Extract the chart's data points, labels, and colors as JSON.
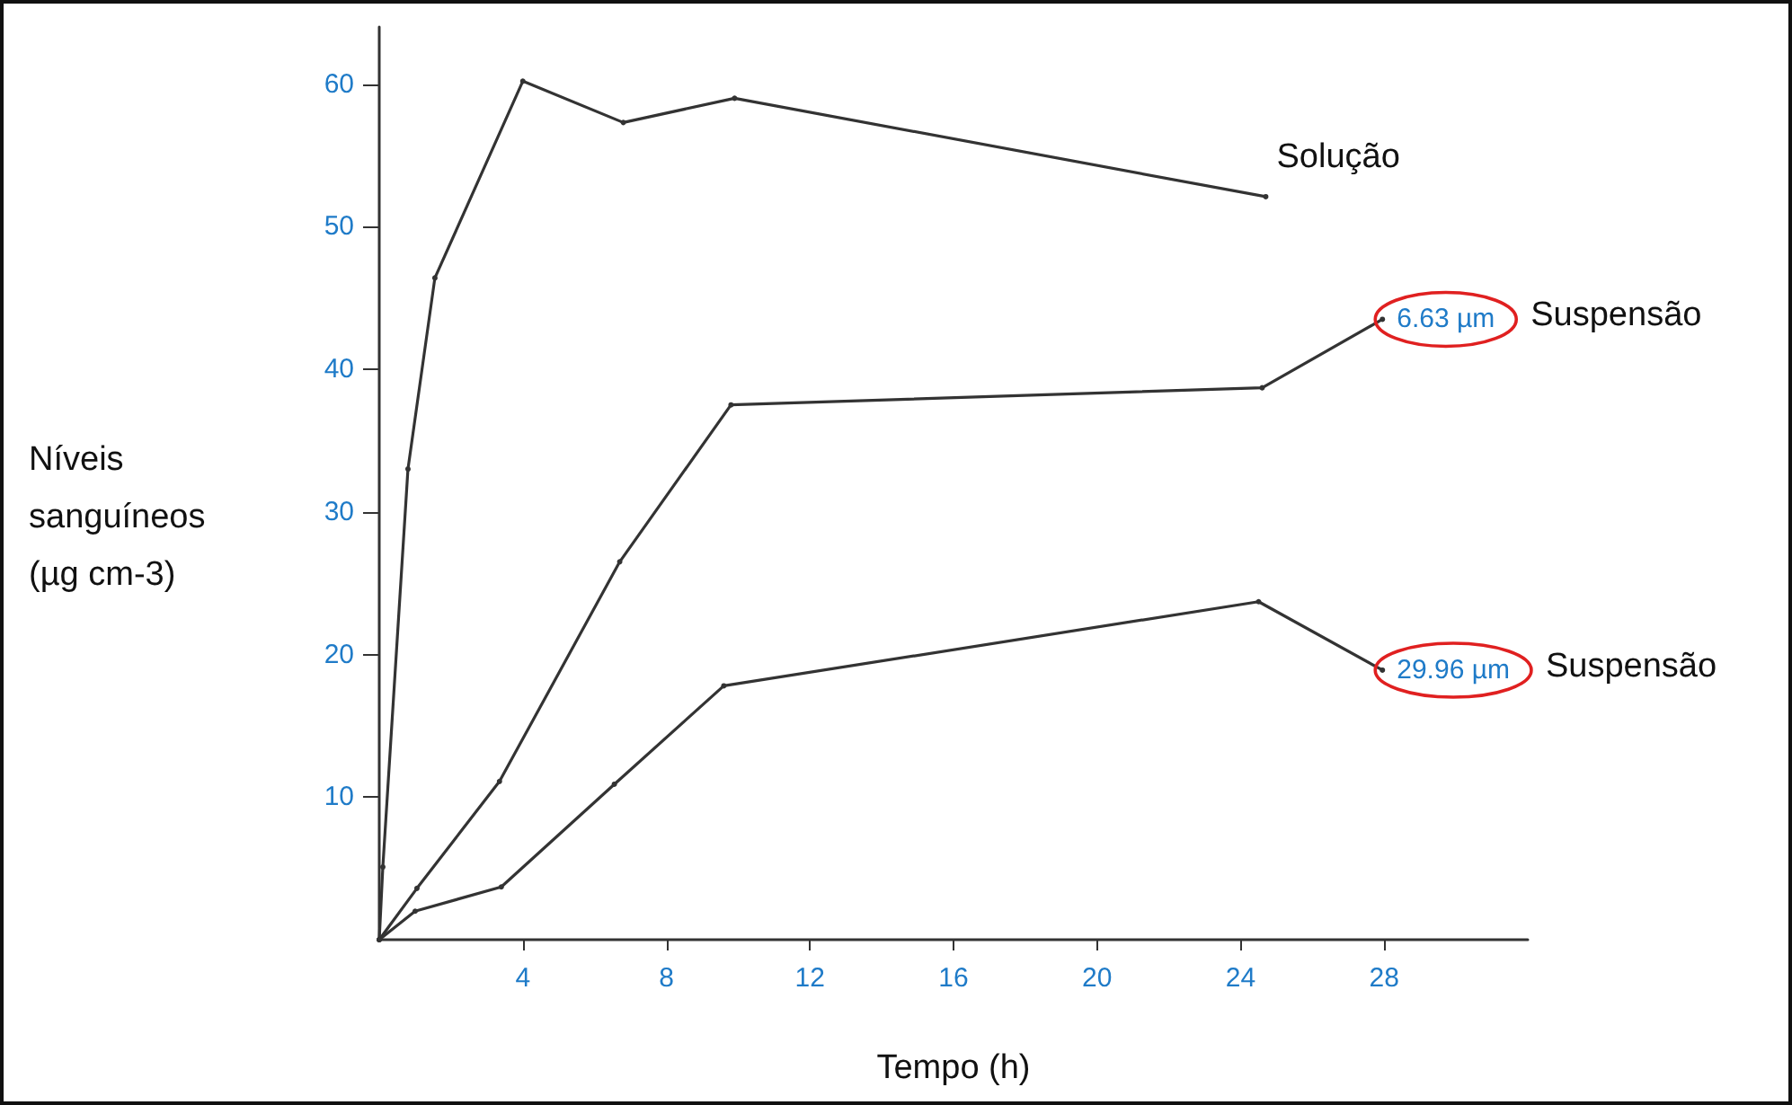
{
  "chart_data": {
    "type": "line",
    "xlabel": "Tempo (h)",
    "ylabel": "Níveis\nsanguíneos\n(µg cm-3)",
    "xlim": [
      0,
      32
    ],
    "xticks": [
      4,
      8,
      12,
      16,
      20,
      24,
      28
    ],
    "ylim": [
      0,
      64
    ],
    "yticks": [
      10,
      20,
      30,
      40,
      50,
      60
    ],
    "grid": false,
    "legend": false,
    "marker": "circle",
    "line_style": "solid",
    "series": [
      {
        "name": "Solução",
        "color": "#333333",
        "x": [
          0,
          0.1,
          0.8,
          1.55,
          4,
          6.8,
          9.9,
          24.7
        ],
        "values": [
          0,
          5.1,
          33,
          46.4,
          60.2,
          57.3,
          59,
          52.1
        ]
      },
      {
        "name": "Suspensão",
        "color": "#333333",
        "x": [
          0,
          1.05,
          3.35,
          6.7,
          9.8,
          24.6,
          27.95
        ],
        "values": [
          0,
          3.6,
          11.1,
          26.5,
          37.5,
          38.7,
          43.5
        ]
      },
      {
        "name": "Suspensão",
        "color": "#333333",
        "x": [
          0,
          1,
          3.4,
          6.55,
          9.6,
          24.5,
          27.95
        ],
        "values": [
          0,
          2,
          3.7,
          10.9,
          17.8,
          23.7,
          18.9
        ]
      }
    ],
    "annotations": [
      {
        "text": "6.63 µm",
        "x": 27.95,
        "y": 43.5
      },
      {
        "text": "29.96 µm",
        "x": 27.95,
        "y": 18.9
      }
    ]
  }
}
